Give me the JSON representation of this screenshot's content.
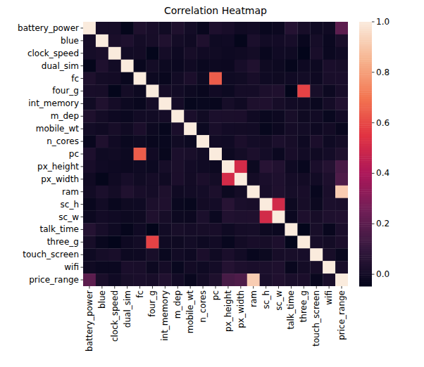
{
  "chart_data": {
    "type": "heatmap",
    "title": "Correlation Heatmap",
    "categories": [
      "battery_power",
      "blue",
      "clock_speed",
      "dual_sim",
      "fc",
      "four_g",
      "int_memory",
      "m_dep",
      "mobile_wt",
      "n_cores",
      "pc",
      "px_height",
      "px_width",
      "ram",
      "sc_h",
      "sc_w",
      "talk_time",
      "three_g",
      "touch_screen",
      "wifi",
      "price_range"
    ],
    "cells": [
      [
        1,
        0.011,
        0.011,
        -0.042,
        0.033,
        0.016,
        -0.004,
        0.034,
        0.002,
        -0.03,
        0.031,
        0.015,
        -0.008,
        -0.001,
        -0.03,
        -0.021,
        0.053,
        0.012,
        -0.011,
        -0.008,
        0.201
      ],
      [
        0.011,
        1,
        0.021,
        0.035,
        0.004,
        0.013,
        0.041,
        0.004,
        -0.009,
        0.036,
        -0.01,
        -0.007,
        -0.042,
        0.026,
        -0.003,
        0.001,
        0.014,
        -0.03,
        0.01,
        -0.022,
        0.021
      ],
      [
        0.011,
        0.021,
        1,
        -0.001,
        0,
        -0.043,
        0.007,
        -0.014,
        0.012,
        -0.006,
        -0.005,
        -0.015,
        -0.009,
        0.003,
        -0.029,
        -0.007,
        -0.011,
        -0.046,
        0.02,
        -0.024,
        -0.007
      ],
      [
        -0.042,
        0.035,
        -0.001,
        1,
        -0.029,
        0.003,
        -0.016,
        -0.022,
        -0.009,
        -0.025,
        -0.017,
        -0.021,
        0.014,
        0.041,
        -0.012,
        -0.017,
        -0.039,
        -0.014,
        -0.017,
        0.023,
        0.017
      ],
      [
        0.033,
        0.004,
        0,
        -0.029,
        1,
        -0.017,
        -0.029,
        -0.002,
        0.024,
        -0.013,
        0.645,
        -0.01,
        -0.005,
        0.015,
        -0.011,
        -0.012,
        -0.007,
        0.002,
        -0.015,
        0.02,
        0.022
      ],
      [
        0.016,
        0.013,
        -0.043,
        0.003,
        -0.017,
        1,
        0.009,
        -0.002,
        -0.017,
        -0.03,
        -0.006,
        -0.019,
        0.007,
        0.007,
        0.027,
        0.037,
        -0.047,
        0.584,
        0.017,
        -0.018,
        0.015
      ],
      [
        -0.004,
        0.041,
        0.007,
        -0.016,
        -0.029,
        0.009,
        1,
        0.007,
        -0.034,
        -0.028,
        -0.033,
        0.01,
        -0.008,
        0.033,
        0.038,
        0.012,
        -0.003,
        -0.009,
        -0.027,
        0.007,
        0.044
      ],
      [
        0.034,
        0.004,
        -0.014,
        -0.022,
        -0.002,
        -0.002,
        0.007,
        1,
        0.022,
        -0.004,
        0.026,
        0.025,
        0.024,
        -0.009,
        -0.025,
        -0.018,
        0.017,
        -0.012,
        -0.003,
        -0.028,
        0.001
      ],
      [
        0.002,
        -0.009,
        0.012,
        -0.009,
        0.024,
        -0.017,
        -0.034,
        0.022,
        1,
        -0.019,
        0.019,
        0.001,
        0,
        -0.003,
        -0.034,
        -0.021,
        0.006,
        0.002,
        -0.014,
        0,
        -0.03
      ],
      [
        -0.03,
        0.036,
        -0.006,
        -0.025,
        -0.013,
        -0.03,
        -0.028,
        -0.004,
        -0.019,
        1,
        -0.001,
        -0.007,
        0.024,
        0.005,
        0,
        0.026,
        0.013,
        -0.015,
        0.024,
        -0.01,
        0.004
      ],
      [
        0.031,
        -0.01,
        -0.005,
        -0.017,
        0.645,
        -0.006,
        -0.033,
        0.026,
        0.019,
        -0.001,
        1,
        -0.018,
        0.004,
        0.029,
        0.005,
        -0.024,
        0.015,
        -0.001,
        -0.009,
        0.005,
        0.034
      ],
      [
        0.015,
        -0.007,
        -0.015,
        -0.021,
        -0.01,
        -0.019,
        0.01,
        0.025,
        0.001,
        -0.007,
        -0.018,
        1,
        0.511,
        -0.02,
        0.06,
        0.043,
        -0.011,
        -0.031,
        0.022,
        0.052,
        0.149
      ],
      [
        -0.008,
        -0.042,
        -0.009,
        0.014,
        -0.005,
        0.007,
        -0.008,
        0.024,
        0,
        0.024,
        0.004,
        0.511,
        1,
        0.004,
        0.022,
        0.035,
        0.007,
        0,
        -0.002,
        0.03,
        0.166
      ],
      [
        -0.001,
        0.026,
        0.003,
        0.041,
        0.015,
        0.007,
        0.033,
        -0.009,
        -0.003,
        0.005,
        0.029,
        -0.02,
        0.004,
        1,
        0.016,
        0.036,
        0.011,
        0.016,
        -0.031,
        0.023,
        0.917
      ],
      [
        -0.03,
        -0.003,
        -0.029,
        -0.012,
        -0.011,
        0.027,
        0.038,
        -0.025,
        -0.034,
        0,
        0.005,
        0.06,
        0.022,
        0.016,
        1,
        0.506,
        -0.017,
        0.012,
        -0.02,
        0.026,
        0.023
      ],
      [
        -0.021,
        0.001,
        -0.007,
        -0.017,
        -0.012,
        0.037,
        0.012,
        -0.018,
        -0.021,
        0.026,
        -0.024,
        0.043,
        0.035,
        0.036,
        0.506,
        1,
        -0.023,
        0.031,
        0.013,
        0.035,
        0.039
      ],
      [
        0.053,
        0.014,
        -0.011,
        -0.039,
        -0.007,
        -0.047,
        -0.003,
        0.017,
        0.006,
        0.013,
        0.015,
        -0.011,
        0.007,
        0.011,
        -0.017,
        -0.023,
        1,
        -0.043,
        0.017,
        -0.03,
        0.022
      ],
      [
        0.012,
        -0.03,
        -0.046,
        -0.014,
        0.002,
        0.584,
        -0.009,
        -0.012,
        0.002,
        -0.015,
        -0.001,
        -0.031,
        0,
        0.016,
        0.012,
        0.031,
        -0.043,
        1,
        0.014,
        0.004,
        0.024
      ],
      [
        -0.011,
        0.01,
        0.02,
        -0.017,
        -0.015,
        0.017,
        -0.027,
        -0.003,
        -0.014,
        0.024,
        -0.009,
        0.022,
        -0.002,
        -0.031,
        -0.02,
        0.013,
        0.017,
        0.014,
        1,
        0.012,
        -0.03
      ],
      [
        -0.008,
        -0.022,
        -0.024,
        0.023,
        0.02,
        -0.018,
        0.007,
        -0.028,
        0,
        -0.01,
        0.005,
        0.052,
        0.03,
        0.023,
        0.026,
        0.035,
        -0.03,
        0.004,
        0.012,
        1,
        0.019
      ],
      [
        0.201,
        0.021,
        -0.007,
        0.017,
        0.022,
        0.015,
        0.044,
        0.001,
        -0.03,
        0.004,
        0.034,
        0.149,
        0.166,
        0.917,
        0.023,
        0.039,
        0.022,
        0.024,
        -0.03,
        0.019,
        1
      ]
    ],
    "colorbar_range": [
      -0.047,
      1
    ],
    "colorbar_ticks": [
      {
        "value": 0,
        "label": "0.0"
      },
      0.2,
      0.4,
      0.6,
      0.8,
      {
        "value": 1,
        "label": "1.0"
      }
    ]
  }
}
